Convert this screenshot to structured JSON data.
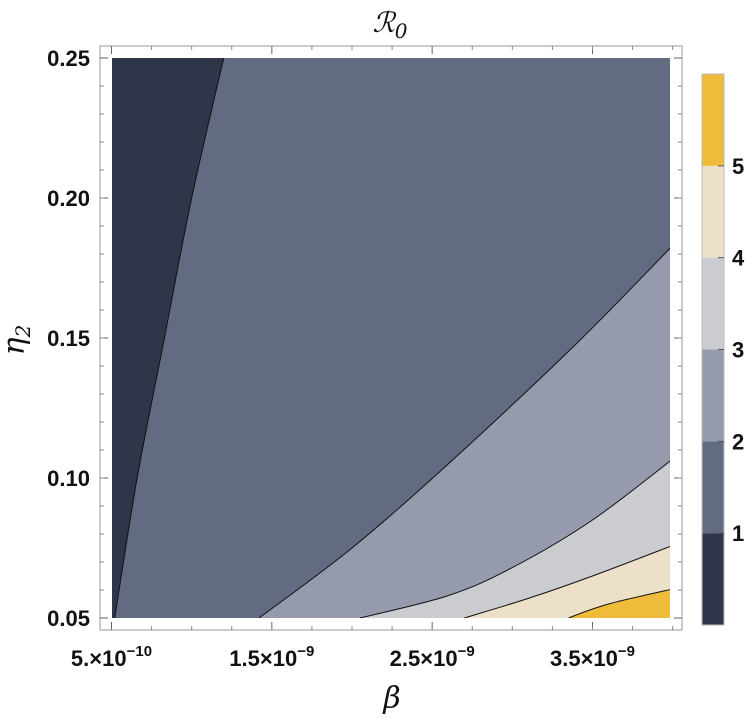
{
  "chart_data": {
    "type": "contour",
    "title": "ℛ",
    "title_subscript": "0",
    "xlabel": "β",
    "ylabel": "η",
    "ylabel_subscript": "2",
    "xlim": [
      3e-10,
      4.1e-09
    ],
    "ylim": [
      0.05,
      0.25
    ],
    "x_ticks": [
      {
        "value": 5e-10,
        "mantissa": "5.",
        "exponent": "−10"
      },
      {
        "value": 1.5e-09,
        "mantissa": "1.5",
        "exponent": "−9"
      },
      {
        "value": 2.5e-09,
        "mantissa": "2.5",
        "exponent": "−9"
      },
      {
        "value": 3.5e-09,
        "mantissa": "3.5",
        "exponent": "−9"
      }
    ],
    "y_ticks": [
      {
        "value": 0.05,
        "label": "0.05"
      },
      {
        "value": 0.1,
        "label": "0.10"
      },
      {
        "value": 0.15,
        "label": "0.15"
      },
      {
        "value": 0.2,
        "label": "0.20"
      },
      {
        "value": 0.25,
        "label": "0.25"
      }
    ],
    "contour_levels": [
      1,
      2,
      3,
      4,
      5
    ],
    "level_lines": [
      {
        "level": 1,
        "points": [
          [
            1.2e-09,
            0.25
          ],
          [
            1e-09,
            0.2
          ],
          [
            8.3e-10,
            0.15
          ],
          [
            6.6e-10,
            0.1
          ],
          [
            5.2e-10,
            0.05
          ]
        ]
      },
      {
        "level": 2,
        "points": [
          [
            4.05e-09,
            0.186
          ],
          [
            3.4e-09,
            0.148
          ],
          [
            2.6e-09,
            0.105
          ],
          [
            2e-09,
            0.075
          ],
          [
            1.42e-09,
            0.05
          ]
        ]
      },
      {
        "level": 3,
        "points": [
          [
            4.05e-09,
            0.109
          ],
          [
            3.5e-09,
            0.085
          ],
          [
            3e-09,
            0.068
          ],
          [
            2.6e-09,
            0.058
          ],
          [
            2.05e-09,
            0.05
          ]
        ]
      },
      {
        "level": 4,
        "points": [
          [
            4.05e-09,
            0.077
          ],
          [
            3.5e-09,
            0.065
          ],
          [
            3.1e-09,
            0.057
          ],
          [
            2.7e-09,
            0.05
          ]
        ]
      },
      {
        "level": 5,
        "points": [
          [
            4.05e-09,
            0.061
          ],
          [
            3.6e-09,
            0.055
          ],
          [
            3.35e-09,
            0.05
          ]
        ]
      }
    ],
    "colors": [
      "#2f3649",
      "#626b82",
      "#959bad",
      "#cbccd0",
      "#ece0c8",
      "#eebb3b"
    ],
    "legend": {
      "type": "colorbar",
      "placement": "right",
      "labels": [
        "1",
        "2",
        "3",
        "4",
        "5"
      ]
    },
    "grid": false
  }
}
